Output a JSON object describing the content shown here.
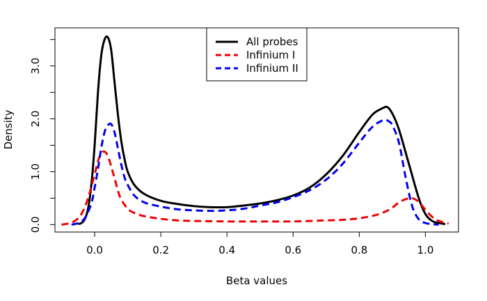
{
  "chart_data": {
    "type": "line",
    "title": "",
    "xlabel": "Beta values",
    "ylabel": "Density",
    "xlim": [
      -0.12,
      1.1
    ],
    "ylim": [
      -0.14,
      3.72
    ],
    "x_ticks": [
      0.0,
      0.2,
      0.4,
      0.6,
      0.8,
      1.0
    ],
    "x_tick_labels": [
      "0.0",
      "0.2",
      "0.4",
      "0.6",
      "0.8",
      "1.0"
    ],
    "y_ticks": [
      0.0,
      0.5,
      1.0,
      1.5,
      2.0,
      2.5,
      3.0,
      3.5
    ],
    "y_tick_labels": [
      "0.0",
      "",
      "1.0",
      "",
      "2.0",
      "",
      "3.0",
      ""
    ],
    "grid": false,
    "legend_position": "top-center",
    "series": [
      {
        "name": "All probes",
        "color": "#000000",
        "dash": "solid",
        "x": [
          -0.05,
          -0.04,
          -0.03,
          -0.02,
          -0.01,
          0.0,
          0.01,
          0.02,
          0.03,
          0.04,
          0.05,
          0.06,
          0.07,
          0.08,
          0.09,
          0.1,
          0.12,
          0.15,
          0.2,
          0.25,
          0.3,
          0.35,
          0.4,
          0.45,
          0.5,
          0.55,
          0.6,
          0.65,
          0.7,
          0.75,
          0.8,
          0.84,
          0.87,
          0.885,
          0.9,
          0.92,
          0.95,
          0.98,
          1.0,
          1.02,
          1.04,
          1.06
        ],
        "y": [
          0.01,
          0.03,
          0.1,
          0.3,
          0.75,
          1.5,
          2.5,
          3.2,
          3.5,
          3.54,
          3.3,
          2.7,
          2.1,
          1.6,
          1.25,
          1.0,
          0.75,
          0.58,
          0.45,
          0.39,
          0.35,
          0.33,
          0.33,
          0.36,
          0.4,
          0.46,
          0.55,
          0.7,
          0.95,
          1.3,
          1.75,
          2.08,
          2.2,
          2.22,
          2.1,
          1.8,
          1.15,
          0.5,
          0.2,
          0.07,
          0.03,
          0.01
        ]
      },
      {
        "name": "Infinium I",
        "color": "#ee0000",
        "dash": "dashed",
        "x": [
          -0.1,
          -0.08,
          -0.06,
          -0.04,
          -0.02,
          0.0,
          0.01,
          0.02,
          0.03,
          0.04,
          0.05,
          0.06,
          0.07,
          0.08,
          0.1,
          0.12,
          0.15,
          0.2,
          0.25,
          0.3,
          0.4,
          0.5,
          0.6,
          0.7,
          0.75,
          0.8,
          0.85,
          0.88,
          0.9,
          0.92,
          0.94,
          0.96,
          0.98,
          1.0,
          1.02,
          1.04,
          1.07
        ],
        "y": [
          0.0,
          0.02,
          0.07,
          0.2,
          0.5,
          0.95,
          1.2,
          1.35,
          1.38,
          1.3,
          1.1,
          0.88,
          0.65,
          0.48,
          0.3,
          0.22,
          0.16,
          0.11,
          0.08,
          0.07,
          0.06,
          0.06,
          0.06,
          0.08,
          0.09,
          0.12,
          0.18,
          0.25,
          0.32,
          0.42,
          0.48,
          0.5,
          0.43,
          0.28,
          0.15,
          0.07,
          0.02
        ]
      },
      {
        "name": "Infinium II",
        "color": "#0000ee",
        "dash": "dashed",
        "x": [
          -0.07,
          -0.05,
          -0.03,
          -0.01,
          0.0,
          0.01,
          0.02,
          0.03,
          0.04,
          0.05,
          0.06,
          0.07,
          0.08,
          0.09,
          0.1,
          0.12,
          0.15,
          0.2,
          0.25,
          0.3,
          0.35,
          0.4,
          0.45,
          0.5,
          0.55,
          0.6,
          0.65,
          0.7,
          0.75,
          0.8,
          0.84,
          0.87,
          0.88,
          0.89,
          0.9,
          0.92,
          0.94,
          0.96,
          0.98,
          1.0,
          1.02,
          1.04
        ],
        "y": [
          0.0,
          0.03,
          0.12,
          0.4,
          0.7,
          1.05,
          1.45,
          1.75,
          1.88,
          1.9,
          1.75,
          1.45,
          1.15,
          0.9,
          0.75,
          0.55,
          0.42,
          0.34,
          0.29,
          0.27,
          0.26,
          0.27,
          0.3,
          0.36,
          0.42,
          0.52,
          0.65,
          0.85,
          1.15,
          1.55,
          1.85,
          1.97,
          1.98,
          1.95,
          1.88,
          1.55,
          0.9,
          0.35,
          0.1,
          0.03,
          0.01,
          0.0
        ]
      }
    ]
  }
}
